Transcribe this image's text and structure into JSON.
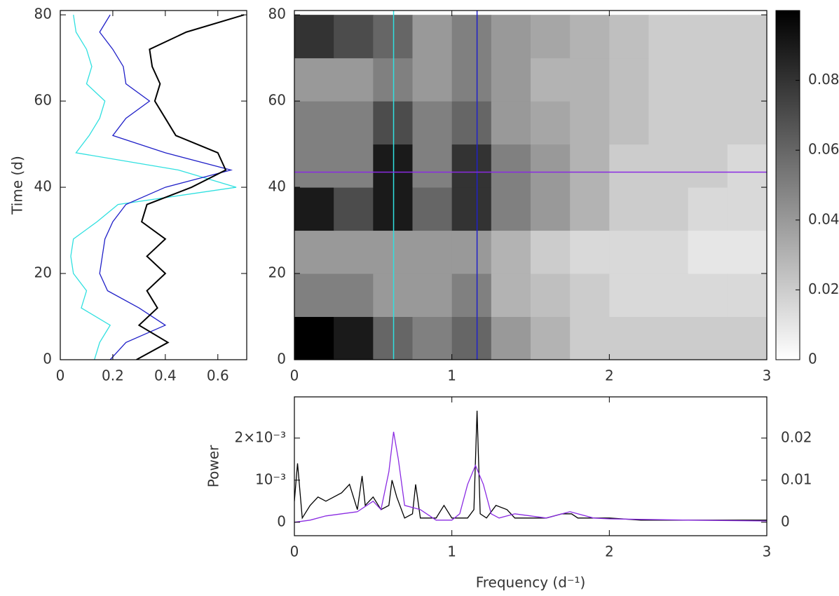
{
  "chart_data": [
    {
      "type": "line",
      "ylabel": "Time (d)",
      "xlim": [
        0,
        0.71
      ],
      "ylim": [
        0,
        81
      ],
      "xticks": [
        0,
        0.2,
        0.4,
        0.6
      ],
      "yticks": [
        0,
        20,
        40,
        60,
        80
      ],
      "y": [
        0,
        4,
        8,
        12,
        16,
        20,
        24,
        28,
        32,
        36,
        40,
        44,
        48,
        52,
        56,
        60,
        64,
        68,
        72,
        76,
        80
      ],
      "series": [
        {
          "color": "#30e0e0",
          "values": [
            0.13,
            0.15,
            0.19,
            0.08,
            0.1,
            0.05,
            0.04,
            0.05,
            0.14,
            0.22,
            0.67,
            0.45,
            0.06,
            0.11,
            0.15,
            0.17,
            0.1,
            0.12,
            0.1,
            0.06,
            0.05
          ]
        },
        {
          "color": "#2020c8",
          "values": [
            0.19,
            0.25,
            0.4,
            0.3,
            0.18,
            0.15,
            0.16,
            0.17,
            0.2,
            0.25,
            0.4,
            0.65,
            0.4,
            0.2,
            0.25,
            0.34,
            0.25,
            0.24,
            0.2,
            0.15,
            0.19
          ]
        },
        {
          "color": "#000000",
          "values": [
            0.29,
            0.41,
            0.3,
            0.37,
            0.33,
            0.4,
            0.33,
            0.4,
            0.31,
            0.33,
            0.5,
            0.63,
            0.6,
            0.44,
            0.4,
            0.36,
            0.38,
            0.35,
            0.34,
            0.48,
            0.7
          ]
        }
      ]
    },
    {
      "type": "heatmap",
      "xlim": [
        0,
        3
      ],
      "ylim": [
        0,
        81
      ],
      "xticks": [
        0,
        1,
        2,
        3
      ],
      "yticks": [
        0,
        20,
        40,
        60,
        80
      ],
      "xbins": [
        0,
        0.25,
        0.5,
        0.75,
        1,
        1.25,
        1.5,
        1.75,
        2,
        2.25,
        2.5,
        2.75,
        3
      ],
      "ybins": [
        0,
        10,
        20,
        30,
        40,
        50,
        60,
        70,
        80
      ],
      "z": [
        [
          0.1,
          0.09,
          0.06,
          0.05,
          0.06,
          0.04,
          0.03,
          0.02,
          0.02,
          0.02,
          0.02,
          0.02
        ],
        [
          0.05,
          0.05,
          0.04,
          0.04,
          0.05,
          0.03,
          0.025,
          0.02,
          0.015,
          0.015,
          0.015,
          0.015
        ],
        [
          0.04,
          0.04,
          0.04,
          0.04,
          0.04,
          0.03,
          0.02,
          0.015,
          0.015,
          0.015,
          0.01,
          0.01
        ],
        [
          0.09,
          0.07,
          0.09,
          0.06,
          0.08,
          0.05,
          0.04,
          0.03,
          0.02,
          0.02,
          0.015,
          0.015
        ],
        [
          0.05,
          0.05,
          0.09,
          0.05,
          0.08,
          0.05,
          0.04,
          0.03,
          0.02,
          0.02,
          0.02,
          0.015
        ],
        [
          0.05,
          0.05,
          0.07,
          0.05,
          0.06,
          0.04,
          0.035,
          0.03,
          0.025,
          0.02,
          0.02,
          0.02
        ],
        [
          0.04,
          0.04,
          0.05,
          0.04,
          0.05,
          0.04,
          0.03,
          0.03,
          0.025,
          0.02,
          0.02,
          0.02
        ],
        [
          0.08,
          0.07,
          0.06,
          0.04,
          0.05,
          0.04,
          0.035,
          0.03,
          0.025,
          0.02,
          0.02,
          0.02
        ]
      ],
      "colormap": [
        "#ffffff",
        "#000000"
      ],
      "colorbar": {
        "lim": [
          0,
          0.1
        ],
        "ticks": [
          0,
          0.02,
          0.04,
          0.06,
          0.08
        ]
      },
      "vlines": [
        {
          "value": 0.63,
          "color": "#30e0e0"
        },
        {
          "value": 1.16,
          "color": "#2020c8"
        }
      ],
      "hlines": [
        {
          "value": 43.5,
          "color": "#8a2be2"
        }
      ]
    },
    {
      "type": "line",
      "xlabel": "Frequency (d⁻¹)",
      "ylabel": "Power",
      "xlim": [
        0,
        3
      ],
      "ylim": [
        -0.00032,
        0.00298
      ],
      "y2lim": [
        -0.0032,
        0.0298
      ],
      "xticks": [
        0,
        1,
        2,
        3
      ],
      "yticks": [
        0,
        {
          "value": 0.001,
          "label": "10⁻³"
        },
        {
          "value": 0.002,
          "label": "2×10⁻³"
        }
      ],
      "y2ticks": [
        0,
        0.01,
        0.02
      ],
      "series": [
        {
          "color": "#000000",
          "axis": "y",
          "x": [
            0,
            0.02,
            0.05,
            0.1,
            0.15,
            0.2,
            0.25,
            0.3,
            0.35,
            0.4,
            0.43,
            0.45,
            0.5,
            0.55,
            0.6,
            0.62,
            0.65,
            0.7,
            0.75,
            0.77,
            0.8,
            0.9,
            0.95,
            1.0,
            1.1,
            1.14,
            1.16,
            1.18,
            1.22,
            1.28,
            1.35,
            1.4,
            1.5,
            1.6,
            1.7,
            1.76,
            1.8,
            1.9,
            2.0,
            2.2,
            2.4,
            2.6,
            2.8,
            3.0
          ],
          "values": [
            0.0005,
            0.0014,
            0.0001,
            0.0004,
            0.0006,
            0.0005,
            0.0006,
            0.0007,
            0.0009,
            0.0003,
            0.0011,
            0.0004,
            0.0006,
            0.0003,
            0.0004,
            0.001,
            0.0006,
            0.0001,
            0.0002,
            0.0009,
            0.0001,
            0.0001,
            0.0004,
            0.0001,
            0.0001,
            0.0003,
            0.00265,
            0.0002,
            0.0001,
            0.0004,
            0.0003,
            0.0001,
            0.0001,
            0.0001,
            0.0002,
            0.0002,
            0.0001,
            0.0001,
            0.0001,
            5e-05,
            5e-05,
            5e-05,
            5e-05,
            5e-05
          ]
        },
        {
          "color": "#8a2be2",
          "axis": "y2",
          "x": [
            0,
            0.1,
            0.2,
            0.3,
            0.4,
            0.5,
            0.55,
            0.6,
            0.63,
            0.66,
            0.7,
            0.8,
            0.9,
            1.0,
            1.05,
            1.1,
            1.15,
            1.2,
            1.25,
            1.3,
            1.4,
            1.5,
            1.6,
            1.75,
            1.9,
            2.0,
            2.5,
            3.0
          ],
          "values": [
            0,
            0.0005,
            0.0015,
            0.002,
            0.0025,
            0.005,
            0.003,
            0.012,
            0.0215,
            0.015,
            0.004,
            0.003,
            0.0005,
            0.0005,
            0.002,
            0.009,
            0.0135,
            0.009,
            0.002,
            0.001,
            0.002,
            0.0015,
            0.001,
            0.0025,
            0.001,
            0.0008,
            0.0005,
            0.0003
          ]
        }
      ]
    }
  ]
}
